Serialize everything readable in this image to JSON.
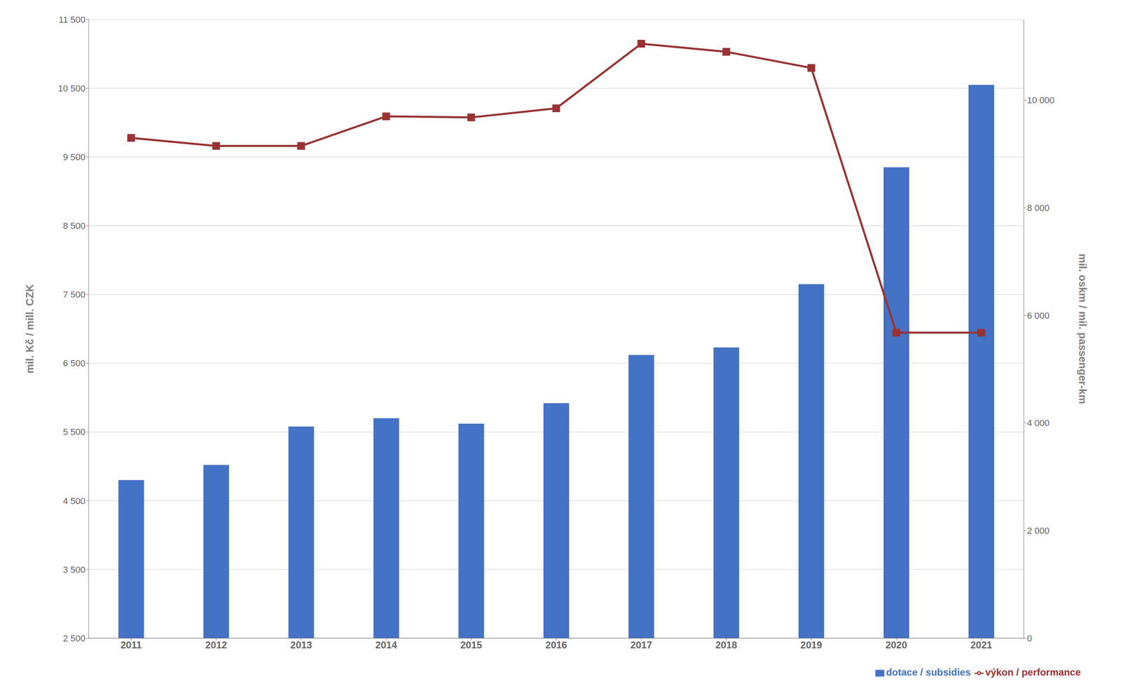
{
  "chart_data": {
    "type": "bar",
    "categories": [
      "2011",
      "2012",
      "2013",
      "2014",
      "2015",
      "2016",
      "2017",
      "2018",
      "2019",
      "2020",
      "2021"
    ],
    "series": [
      {
        "name": "dotace / subsidies",
        "type": "bar",
        "color": "#4472c4",
        "values": [
          4800,
          5020,
          5580,
          5700,
          5620,
          5920,
          6620,
          6730,
          7650,
          9350,
          10550
        ]
      },
      {
        "name": "výkon / performance",
        "type": "line",
        "color": "#993333",
        "marker": "square",
        "axis": "y2",
        "values": [
          9300,
          9150,
          9150,
          9700,
          9680,
          9850,
          11050,
          10900,
          10600,
          5680,
          5680
        ]
      }
    ],
    "ylabel": "mil. Kč / mill. CZK",
    "y2label": "mil. oskm / mil. passenger-km",
    "ylim": [
      2500,
      11500
    ],
    "yticks": [
      {
        "value": 2500,
        "label": "2 500"
      },
      {
        "value": 3500,
        "label": "3 500"
      },
      {
        "value": 4500,
        "label": "4 500"
      },
      {
        "value": 5500,
        "label": "5 500"
      },
      {
        "value": 6500,
        "label": "6 500"
      },
      {
        "value": 7500,
        "label": "7 500"
      },
      {
        "value": 8500,
        "label": "8 500"
      },
      {
        "value": 9500,
        "label": "9 500"
      },
      {
        "value": 10500,
        "label": "10 500"
      },
      {
        "value": 11500,
        "label": "11 500"
      }
    ],
    "y2lim": [
      0,
      11500
    ],
    "y2ticks": [
      0,
      {
        "value": 2000,
        "label": "2 000"
      },
      {
        "value": 4000,
        "label": "4 000"
      },
      {
        "value": 6000,
        "label": "6 000"
      },
      {
        "value": 8000,
        "label": "8 000"
      },
      {
        "value": 10000,
        "label": "10 000"
      }
    ],
    "grid": true,
    "legend": "lower right"
  }
}
